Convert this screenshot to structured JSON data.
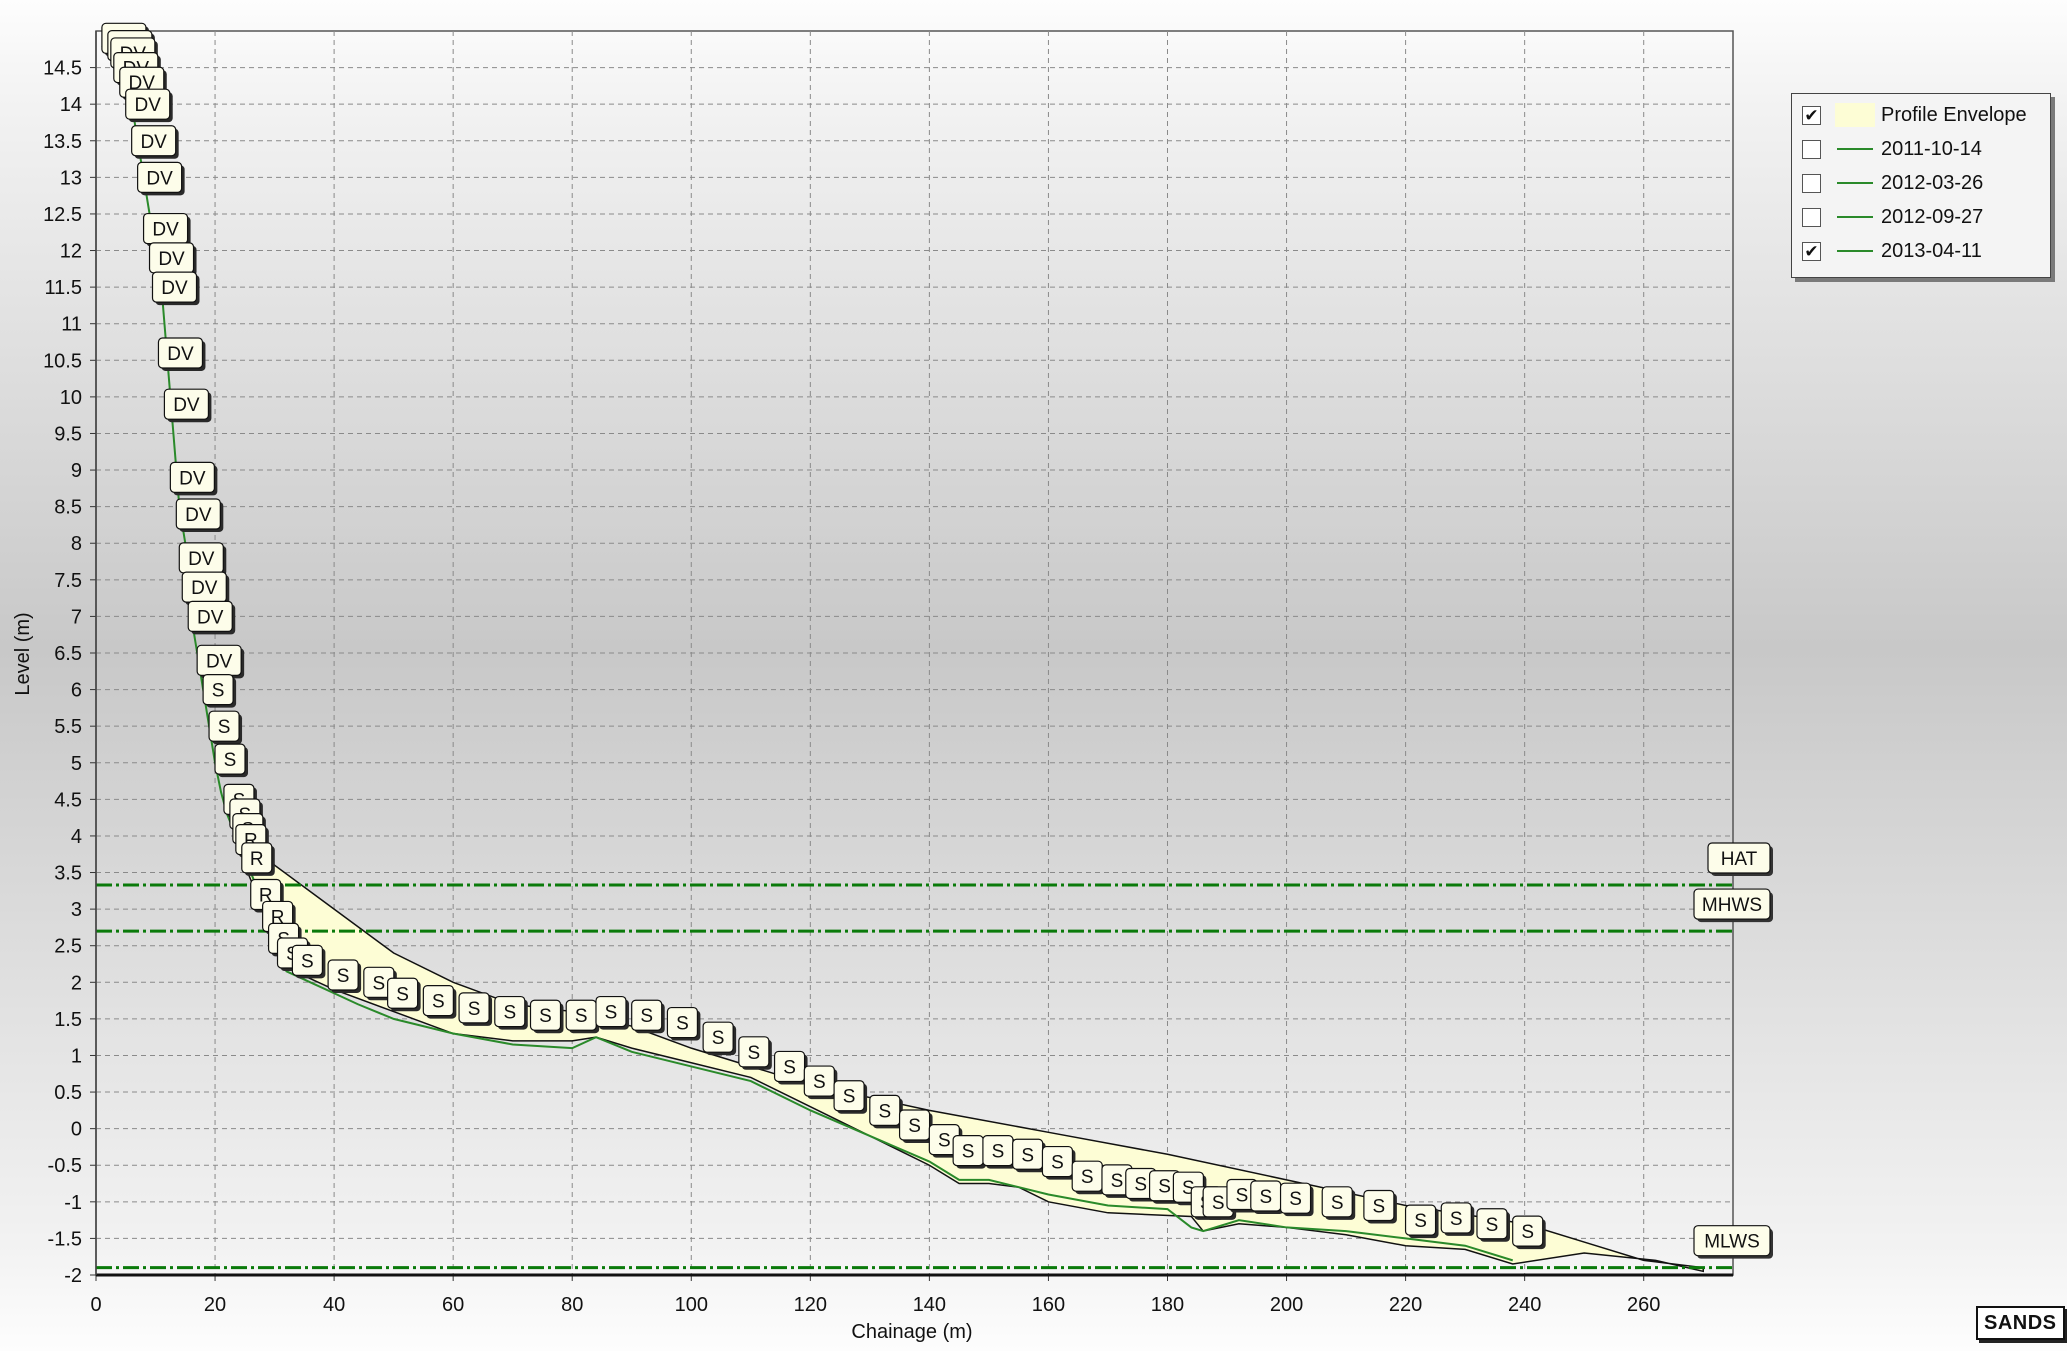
{
  "chart_data": {
    "type": "line",
    "xlabel": "Chainage (m)",
    "ylabel": "Level (m)",
    "xlim": [
      0,
      275
    ],
    "ylim": [
      -2,
      15
    ],
    "x_ticks": [
      0,
      20,
      40,
      60,
      80,
      100,
      120,
      140,
      160,
      180,
      200,
      220,
      240,
      260
    ],
    "y_ticks": [
      -2,
      -1.5,
      -1,
      -0.5,
      0,
      0.5,
      1,
      1.5,
      2,
      2.5,
      3,
      3.5,
      4,
      4.5,
      5,
      5.5,
      6,
      6.5,
      7,
      7.5,
      8,
      8.5,
      9,
      9.5,
      10,
      10.5,
      11,
      11.5,
      12,
      12.5,
      13,
      13.5,
      14,
      14.5
    ],
    "x_tick_labels": [
      "0",
      "20",
      "40",
      "60",
      "80",
      "100",
      "120",
      "140",
      "160",
      "180",
      "200",
      "220",
      "240",
      "260"
    ],
    "y_tick_labels": [
      "-2",
      "-1.5",
      "-1",
      "-0.5",
      "0",
      "0.5",
      "1",
      "1.5",
      "2",
      "2.5",
      "3",
      "3.5",
      "4",
      "4.5",
      "5",
      "5.5",
      "6",
      "6.5",
      "7",
      "7.5",
      "8",
      "8.5",
      "9",
      "9.5",
      "10",
      "10.5",
      "11",
      "11.5",
      "12",
      "12.5",
      "13",
      "13.5",
      "14",
      "14.5"
    ],
    "grid": true,
    "legend_position": "right, outside plot",
    "colors": {
      "envelope_fill": "#fdfdd5",
      "profile_line": "#2a8a2a",
      "tide_line": "#0a7a0a"
    },
    "envelope": {
      "name": "Profile Envelope",
      "upper": [
        [
          24,
          4.1
        ],
        [
          28,
          3.8
        ],
        [
          30,
          3.6
        ],
        [
          40,
          3.0
        ],
        [
          50,
          2.4
        ],
        [
          60,
          2.0
        ],
        [
          70,
          1.7
        ],
        [
          80,
          1.6
        ],
        [
          90,
          1.4
        ],
        [
          100,
          1.1
        ],
        [
          120,
          0.6
        ],
        [
          140,
          0.25
        ],
        [
          160,
          -0.05
        ],
        [
          180,
          -0.35
        ],
        [
          200,
          -0.7
        ],
        [
          220,
          -1.05
        ],
        [
          240,
          -1.3
        ],
        [
          250,
          -1.55
        ],
        [
          260,
          -1.8
        ],
        [
          270,
          -1.9
        ]
      ],
      "lower": [
        [
          270,
          -1.95
        ],
        [
          262,
          -1.8
        ],
        [
          250,
          -1.7
        ],
        [
          238,
          -1.85
        ],
        [
          230,
          -1.65
        ],
        [
          220,
          -1.6
        ],
        [
          210,
          -1.45
        ],
        [
          200,
          -1.35
        ],
        [
          192,
          -1.3
        ],
        [
          186,
          -1.4
        ],
        [
          184,
          -1.2
        ],
        [
          170,
          -1.15
        ],
        [
          160,
          -1.0
        ],
        [
          155,
          -0.8
        ],
        [
          150,
          -0.75
        ],
        [
          145,
          -0.75
        ],
        [
          140,
          -0.5
        ],
        [
          130,
          -0.1
        ],
        [
          120,
          0.3
        ],
        [
          110,
          0.7
        ],
        [
          100,
          0.9
        ],
        [
          90,
          1.1
        ],
        [
          84,
          1.25
        ],
        [
          80,
          1.2
        ],
        [
          70,
          1.2
        ],
        [
          60,
          1.3
        ],
        [
          50,
          1.6
        ],
        [
          40,
          1.9
        ],
        [
          32,
          2.2
        ],
        [
          30,
          2.5
        ],
        [
          28,
          3.0
        ],
        [
          25,
          3.6
        ]
      ]
    },
    "series": [
      {
        "name": "2013-04-11",
        "visible": true,
        "points": [
          [
            1,
            14.8
          ],
          [
            3,
            14.6
          ],
          [
            5,
            14.3
          ],
          [
            6,
            14.0
          ],
          [
            7,
            13.5
          ],
          [
            8,
            13.0
          ],
          [
            9,
            12.5
          ],
          [
            10,
            12.0
          ],
          [
            11,
            11.5
          ],
          [
            11.5,
            11.0
          ],
          [
            12,
            10.5
          ],
          [
            12.5,
            10.0
          ],
          [
            13,
            9.5
          ],
          [
            13.5,
            9.0
          ],
          [
            14,
            8.5
          ],
          [
            15,
            8.0
          ],
          [
            15.5,
            7.5
          ],
          [
            16,
            7.0
          ],
          [
            17,
            6.5
          ],
          [
            18,
            6.0
          ],
          [
            19,
            5.5
          ],
          [
            20,
            5.0
          ],
          [
            21,
            4.6
          ],
          [
            22,
            4.3
          ],
          [
            23,
            4.1
          ],
          [
            24,
            4.0
          ],
          [
            25,
            3.7
          ],
          [
            27,
            3.3
          ],
          [
            28,
            3.0
          ],
          [
            29,
            2.7
          ],
          [
            30,
            2.5
          ],
          [
            31,
            2.3
          ],
          [
            32,
            2.15
          ],
          [
            36,
            2.0
          ],
          [
            40,
            1.85
          ],
          [
            44,
            1.7
          ],
          [
            50,
            1.5
          ],
          [
            60,
            1.3
          ],
          [
            70,
            1.15
          ],
          [
            80,
            1.1
          ],
          [
            84,
            1.25
          ],
          [
            90,
            1.05
          ],
          [
            100,
            0.85
          ],
          [
            110,
            0.65
          ],
          [
            120,
            0.25
          ],
          [
            130,
            -0.1
          ],
          [
            140,
            -0.45
          ],
          [
            145,
            -0.7
          ],
          [
            150,
            -0.7
          ],
          [
            160,
            -0.9
          ],
          [
            170,
            -1.05
          ],
          [
            180,
            -1.1
          ],
          [
            184,
            -1.35
          ],
          [
            186,
            -1.4
          ],
          [
            192,
            -1.25
          ],
          [
            200,
            -1.35
          ],
          [
            210,
            -1.4
          ],
          [
            220,
            -1.5
          ],
          [
            230,
            -1.6
          ],
          [
            238,
            -1.8
          ]
        ]
      },
      {
        "name": "2011-10-14",
        "visible": false
      },
      {
        "name": "2012-03-26",
        "visible": false
      },
      {
        "name": "2012-09-27",
        "visible": false
      }
    ],
    "tide_levels": [
      {
        "name": "HAT",
        "value": 3.33
      },
      {
        "name": "MHWS",
        "value": 2.7
      },
      {
        "name": "MLWS",
        "value": -1.9
      }
    ],
    "feature_labels": [
      {
        "text": "DV",
        "x": 2,
        "y": 14.9
      },
      {
        "text": "DV",
        "x": 3,
        "y": 14.8
      },
      {
        "text": "DV",
        "x": 3.5,
        "y": 14.7
      },
      {
        "text": "DV",
        "x": 4,
        "y": 14.5
      },
      {
        "text": "DV",
        "x": 5,
        "y": 14.3
      },
      {
        "text": "DV",
        "x": 6,
        "y": 14.0
      },
      {
        "text": "DV",
        "x": 7,
        "y": 13.5
      },
      {
        "text": "DV",
        "x": 8,
        "y": 13.0
      },
      {
        "text": "DV",
        "x": 9,
        "y": 12.3
      },
      {
        "text": "DV",
        "x": 10,
        "y": 11.9
      },
      {
        "text": "DV",
        "x": 10.5,
        "y": 11.5
      },
      {
        "text": "DV",
        "x": 11.5,
        "y": 10.6
      },
      {
        "text": "DV",
        "x": 12.5,
        "y": 9.9
      },
      {
        "text": "DV",
        "x": 13.5,
        "y": 8.9
      },
      {
        "text": "DV",
        "x": 14.5,
        "y": 8.4
      },
      {
        "text": "DV",
        "x": 15,
        "y": 7.8
      },
      {
        "text": "DV",
        "x": 15.5,
        "y": 7.4
      },
      {
        "text": "DV",
        "x": 16.5,
        "y": 7.0
      },
      {
        "text": "DV",
        "x": 18,
        "y": 6.4
      },
      {
        "text": "S",
        "x": 19,
        "y": 6.0
      },
      {
        "text": "S",
        "x": 20,
        "y": 5.5
      },
      {
        "text": "S",
        "x": 21,
        "y": 5.05
      },
      {
        "text": "S",
        "x": 22.5,
        "y": 4.5
      },
      {
        "text": "S",
        "x": 23.5,
        "y": 4.3
      },
      {
        "text": "S",
        "x": 24,
        "y": 4.1
      },
      {
        "text": "R",
        "x": 24.5,
        "y": 3.95
      },
      {
        "text": "R",
        "x": 25.5,
        "y": 3.7
      },
      {
        "text": "R",
        "x": 27,
        "y": 3.2
      },
      {
        "text": "R",
        "x": 29,
        "y": 2.9
      },
      {
        "text": "S",
        "x": 30,
        "y": 2.6
      },
      {
        "text": "S",
        "x": 31.5,
        "y": 2.4
      },
      {
        "text": "S",
        "x": 34,
        "y": 2.3
      },
      {
        "text": "S",
        "x": 40,
        "y": 2.1
      },
      {
        "text": "S",
        "x": 46,
        "y": 2.0
      },
      {
        "text": "S",
        "x": 50,
        "y": 1.85
      },
      {
        "text": "S",
        "x": 56,
        "y": 1.75
      },
      {
        "text": "S",
        "x": 62,
        "y": 1.65
      },
      {
        "text": "S",
        "x": 68,
        "y": 1.6
      },
      {
        "text": "S",
        "x": 74,
        "y": 1.55
      },
      {
        "text": "S",
        "x": 80,
        "y": 1.55
      },
      {
        "text": "S",
        "x": 85,
        "y": 1.6
      },
      {
        "text": "S",
        "x": 91,
        "y": 1.55
      },
      {
        "text": "S",
        "x": 97,
        "y": 1.45
      },
      {
        "text": "S",
        "x": 103,
        "y": 1.25
      },
      {
        "text": "S",
        "x": 109,
        "y": 1.05
      },
      {
        "text": "S",
        "x": 115,
        "y": 0.85
      },
      {
        "text": "S",
        "x": 120,
        "y": 0.65
      },
      {
        "text": "S",
        "x": 125,
        "y": 0.45
      },
      {
        "text": "S",
        "x": 131,
        "y": 0.25
      },
      {
        "text": "S",
        "x": 136,
        "y": 0.05
      },
      {
        "text": "S",
        "x": 141,
        "y": -0.15
      },
      {
        "text": "S",
        "x": 145,
        "y": -0.3
      },
      {
        "text": "S",
        "x": 150,
        "y": -0.3
      },
      {
        "text": "S",
        "x": 155,
        "y": -0.35
      },
      {
        "text": "S",
        "x": 160,
        "y": -0.45
      },
      {
        "text": "S",
        "x": 165,
        "y": -0.65
      },
      {
        "text": "S",
        "x": 170,
        "y": -0.7
      },
      {
        "text": "S",
        "x": 174,
        "y": -0.75
      },
      {
        "text": "S",
        "x": 178,
        "y": -0.78
      },
      {
        "text": "S",
        "x": 182,
        "y": -0.8
      },
      {
        "text": "S",
        "x": 185,
        "y": -1.0
      },
      {
        "text": "S",
        "x": 187,
        "y": -1.0
      },
      {
        "text": "S",
        "x": 191,
        "y": -0.9
      },
      {
        "text": "S",
        "x": 195,
        "y": -0.92
      },
      {
        "text": "S",
        "x": 200,
        "y": -0.95
      },
      {
        "text": "S",
        "x": 207,
        "y": -1.0
      },
      {
        "text": "S",
        "x": 214,
        "y": -1.05
      },
      {
        "text": "S",
        "x": 221,
        "y": -1.25
      },
      {
        "text": "S",
        "x": 227,
        "y": -1.22
      },
      {
        "text": "S",
        "x": 233,
        "y": -1.3
      },
      {
        "text": "S",
        "x": 239,
        "y": -1.4
      }
    ]
  },
  "legend": {
    "items": [
      {
        "label": "Profile Envelope",
        "checked": true,
        "kind": "fill"
      },
      {
        "label": "2011-10-14",
        "checked": false,
        "kind": "line"
      },
      {
        "label": "2012-03-26",
        "checked": false,
        "kind": "line"
      },
      {
        "label": "2012-09-27",
        "checked": false,
        "kind": "line"
      },
      {
        "label": "2013-04-11",
        "checked": true,
        "kind": "line"
      }
    ],
    "check_glyph": "✔"
  },
  "logo": {
    "text": "SANDS"
  }
}
